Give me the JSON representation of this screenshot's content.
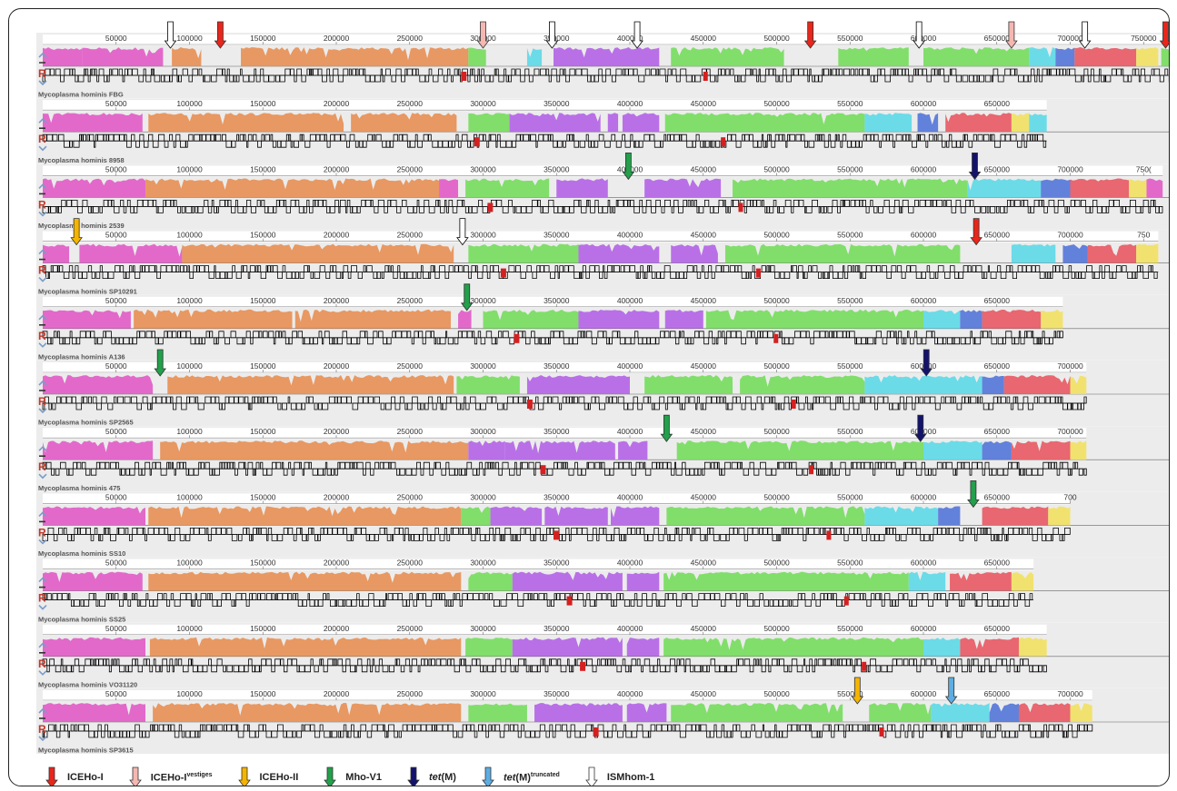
{
  "tick_labels": {
    "50000": "50000",
    "100000": "100000",
    "150000": "150000",
    "200000": "200000",
    "250000": "250000",
    "300000": "300000",
    "350000": "350000",
    "400000": "400000",
    "450000": "450000",
    "500000": "500000",
    "550000": "550000",
    "600000": "600000",
    "650000": "650000",
    "700000": "700000",
    "750000": "750000",
    "7500_cut": "750(",
    "750_cut": "750",
    "700_cut": "700"
  },
  "glyphs": {
    "reference_marker": "R"
  },
  "tracks": [
    {
      "label": "",
      "genome_length_bp": 792000,
      "last_tick_label": "750000",
      "markers": [
        {
          "type": "ISMhom-1",
          "pos_bp": 87000
        },
        {
          "type": "ICEHo-I",
          "pos_bp": 121000
        },
        {
          "type": "ICEHo-I-vestiges",
          "pos_bp": 300000
        },
        {
          "type": "ISMhom-1",
          "pos_bp": 347000
        },
        {
          "type": "ISMhom-1",
          "pos_bp": 405000
        },
        {
          "type": "ICEHo-I",
          "pos_bp": 523000
        },
        {
          "type": "ISMhom-1",
          "pos_bp": 597000
        },
        {
          "type": "ICEHo-I-vestiges",
          "pos_bp": 660000
        },
        {
          "type": "ISMhom-1",
          "pos_bp": 710000
        },
        {
          "type": "ICEHo-I",
          "pos_bp": 765000
        }
      ]
    },
    {
      "label": "Mycoplasma hominis FBG",
      "genome_length_bp": 684000,
      "last_tick_label": "650000",
      "markers": []
    },
    {
      "label": "Mycoplasma hominis 8958",
      "genome_length_bp": 763000,
      "last_tick_label": "7500_cut",
      "markers": [
        {
          "type": "Mho-V1",
          "pos_bp": 399000
        },
        {
          "type": "tet(M)",
          "pos_bp": 635000
        }
      ]
    },
    {
      "label": "Mycoplasma hominis 2539",
      "genome_length_bp": 760000,
      "last_tick_label": "750_cut",
      "markers": [
        {
          "type": "ICEHo-II",
          "pos_bp": 23000
        },
        {
          "type": "ISMhom-1",
          "pos_bp": 286000
        },
        {
          "type": "ICEHo-I",
          "pos_bp": 636000
        }
      ]
    },
    {
      "label": "Mycoplasma hominis SP10291",
      "genome_length_bp": 695000,
      "last_tick_label": "650000",
      "markers": [
        {
          "type": "Mho-V1",
          "pos_bp": 289000
        }
      ]
    },
    {
      "label": "Mycoplasma hominis A136",
      "genome_length_bp": 711000,
      "last_tick_label": "700000",
      "markers": [
        {
          "type": "Mho-V1",
          "pos_bp": 80000
        },
        {
          "type": "tet(M)",
          "pos_bp": 602000
        }
      ]
    },
    {
      "label": "Mycoplasma hominis SP2565",
      "genome_length_bp": 711000,
      "last_tick_label": "700000",
      "markers": [
        {
          "type": "Mho-V1",
          "pos_bp": 425000
        },
        {
          "type": "tet(M)",
          "pos_bp": 598000
        }
      ]
    },
    {
      "label": "Mycoplasma hominis 475",
      "genome_length_bp": 700000,
      "last_tick_label": "700_cut",
      "markers": [
        {
          "type": "Mho-V1",
          "pos_bp": 634000
        }
      ]
    },
    {
      "label": "Mycoplasma hominis SS10",
      "genome_length_bp": 675000,
      "last_tick_label": "650000",
      "markers": []
    },
    {
      "label": "Mycoplasma hominis SS25",
      "genome_length_bp": 684000,
      "last_tick_label": "650000",
      "markers": []
    },
    {
      "label": "Mycoplasma hominis VO31120",
      "genome_length_bp": 715000,
      "last_tick_label": "700000",
      "markers": [
        {
          "type": "ICEHo-II",
          "pos_bp": 555000
        },
        {
          "type": "tet(M)-truncated",
          "pos_bp": 619000
        }
      ]
    },
    {
      "label": "Mycoplasma hominis SP3615",
      "genome_length_bp": 0,
      "last_tick_label": "",
      "markers": []
    }
  ],
  "legend": [
    {
      "type": "ICEHo-I",
      "text": "ICEHo-I",
      "sup": "",
      "italic": false,
      "fill": "#e8261c"
    },
    {
      "type": "ICEHo-I-vestiges",
      "text": "ICEHo-I",
      "sup": "vestiges",
      "italic": false,
      "fill": "#f5b7b1"
    },
    {
      "type": "ICEHo-II",
      "text": "ICEHo-II",
      "sup": "",
      "italic": false,
      "fill": "#f4b400"
    },
    {
      "type": "Mho-V1",
      "text": "Mho-V1",
      "sup": "",
      "italic": false,
      "fill": "#22a04b"
    },
    {
      "type": "tet(M)",
      "text": "tet",
      "suffix": "(M)",
      "sup": "",
      "italic": true,
      "fill": "#13136b"
    },
    {
      "type": "tet(M)-truncated",
      "text": "tet",
      "suffix": "(M)",
      "sup": "truncated",
      "italic": true,
      "fill": "#5dade2"
    },
    {
      "type": "ISMhom-1",
      "text": "ISMhom-1",
      "sup": "",
      "italic": false,
      "fill": "#ffffff"
    }
  ],
  "block_colors": {
    "pink": "#e052c4",
    "orange": "#e8894a",
    "green": "#6fdc55",
    "purple": "#b05ae6",
    "cyan": "#55d8e8",
    "blue": "#4a6fd8",
    "red": "#e8505a",
    "yellow": "#f2e05a"
  },
  "marker_colors": {
    "ICEHo-I": "#e8261c",
    "ICEHo-I-vestiges": "#f5b7b1",
    "ICEHo-II": "#f4b400",
    "Mho-V1": "#22a04b",
    "tet(M)": "#13136b",
    "tet(M)-truncated": "#5dade2",
    "ISMhom-1": "#ffffff"
  }
}
